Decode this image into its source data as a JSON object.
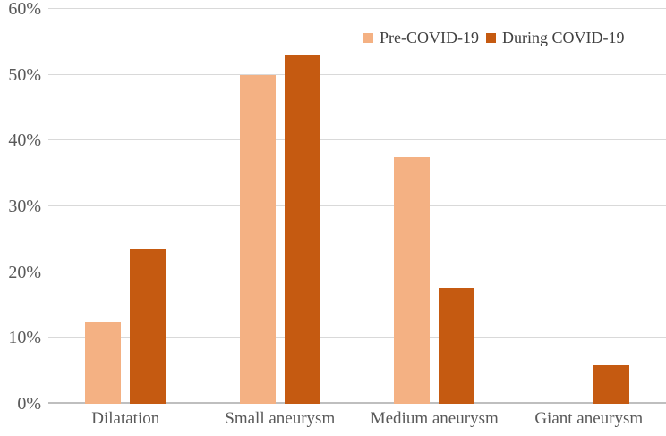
{
  "chart_data": {
    "type": "bar",
    "title": "",
    "xlabel": "",
    "ylabel": "",
    "categories": [
      "Dilatation",
      "Small aneurysm",
      "Medium aneurysm",
      "Giant aneurysm"
    ],
    "series": [
      {
        "name": "Pre-COVID-19",
        "color": "#F4B183",
        "values": [
          12.5,
          50.0,
          37.5,
          0.0
        ]
      },
      {
        "name": "During COVID-19",
        "color": "#C55A11",
        "values": [
          23.5,
          52.9,
          17.6,
          5.9
        ]
      }
    ],
    "ylim": [
      0,
      60
    ],
    "y_tick_step": 10,
    "y_tick_labels": [
      "0%",
      "10%",
      "20%",
      "30%",
      "40%",
      "50%",
      "60%"
    ],
    "grid": true,
    "legend_position": "top-right"
  },
  "colors": {
    "background": "#FFFFFF",
    "gridline": "#D9D9D9",
    "baseline": "#BFBFBF",
    "axis_text": "#595959",
    "legend_text": "#404040"
  }
}
